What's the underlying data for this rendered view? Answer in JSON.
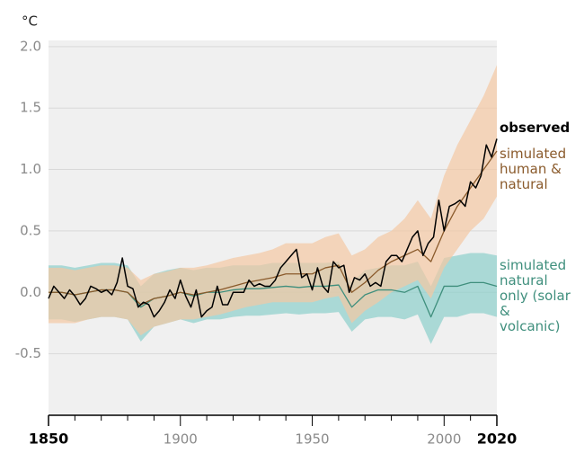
{
  "chart_data": {
    "type": "line",
    "y_label": "°C",
    "xlim": [
      1850,
      2020
    ],
    "xticks": [
      1850,
      1900,
      1950,
      2000,
      2020
    ],
    "xminorticks": [
      1860,
      1870,
      1880,
      1890,
      1910,
      1920,
      1930,
      1940,
      1960,
      1970,
      1980,
      1990,
      2010
    ],
    "ylim": [
      -1.0,
      2.05
    ],
    "yticks": [
      {
        "value": 2.0,
        "label": "2.0"
      },
      {
        "value": 1.5,
        "label": "1.5"
      },
      {
        "value": 1.0,
        "label": "1.0"
      },
      {
        "value": 0.5,
        "label": "0.5"
      },
      {
        "value": 0.0,
        "label": "0.0"
      },
      -0.5
    ],
    "grid": true,
    "series": [
      {
        "name": "simulated natural only (solar & volcanic)",
        "color": "#3f8f7d",
        "band_color": "#8ccfca",
        "x": [
          1850,
          1855,
          1860,
          1865,
          1870,
          1875,
          1880,
          1885,
          1890,
          1895,
          1900,
          1905,
          1910,
          1915,
          1920,
          1925,
          1930,
          1935,
          1940,
          1945,
          1950,
          1955,
          1960,
          1965,
          1970,
          1975,
          1980,
          1985,
          1990,
          1995,
          2000,
          2005,
          2010,
          2015,
          2020
        ],
        "values": [
          0.0,
          0.0,
          -0.02,
          0.0,
          0.02,
          0.02,
          0.0,
          -0.12,
          -0.05,
          -0.03,
          0.0,
          -0.03,
          0.0,
          0.0,
          0.02,
          0.03,
          0.03,
          0.04,
          0.05,
          0.04,
          0.05,
          0.05,
          0.06,
          -0.12,
          -0.02,
          0.02,
          0.02,
          0.0,
          0.05,
          -0.2,
          0.05,
          0.05,
          0.08,
          0.08,
          0.05
        ],
        "upper": [
          0.22,
          0.22,
          0.2,
          0.22,
          0.24,
          0.24,
          0.22,
          0.05,
          0.15,
          0.18,
          0.2,
          0.18,
          0.2,
          0.2,
          0.22,
          0.22,
          0.22,
          0.24,
          0.24,
          0.24,
          0.24,
          0.24,
          0.25,
          0.08,
          0.18,
          0.2,
          0.22,
          0.22,
          0.25,
          0.05,
          0.28,
          0.3,
          0.32,
          0.32,
          0.3
        ],
        "lower": [
          -0.22,
          -0.22,
          -0.24,
          -0.22,
          -0.2,
          -0.2,
          -0.22,
          -0.4,
          -0.28,
          -0.25,
          -0.22,
          -0.25,
          -0.22,
          -0.22,
          -0.2,
          -0.19,
          -0.19,
          -0.18,
          -0.17,
          -0.18,
          -0.17,
          -0.17,
          -0.16,
          -0.32,
          -0.22,
          -0.2,
          -0.2,
          -0.22,
          -0.18,
          -0.42,
          -0.2,
          -0.2,
          -0.17,
          -0.17,
          -0.2
        ]
      },
      {
        "name": "simulated human & natural",
        "color": "#8a5a2b",
        "band_color": "#f3c7a2",
        "x": [
          1850,
          1855,
          1860,
          1865,
          1870,
          1875,
          1880,
          1885,
          1890,
          1895,
          1900,
          1905,
          1910,
          1915,
          1920,
          1925,
          1930,
          1935,
          1940,
          1945,
          1950,
          1955,
          1960,
          1965,
          1970,
          1975,
          1980,
          1985,
          1990,
          1995,
          2000,
          2005,
          2010,
          2015,
          2020
        ],
        "values": [
          0.0,
          0.0,
          -0.02,
          0.0,
          0.02,
          0.02,
          0.0,
          -0.1,
          -0.05,
          -0.03,
          0.0,
          -0.02,
          0.0,
          0.02,
          0.05,
          0.08,
          0.1,
          0.12,
          0.15,
          0.15,
          0.15,
          0.2,
          0.22,
          0.0,
          0.08,
          0.18,
          0.25,
          0.3,
          0.35,
          0.25,
          0.5,
          0.7,
          0.85,
          1.0,
          1.15
        ],
        "upper": [
          0.2,
          0.2,
          0.18,
          0.2,
          0.22,
          0.22,
          0.2,
          0.1,
          0.15,
          0.17,
          0.2,
          0.2,
          0.22,
          0.25,
          0.28,
          0.3,
          0.32,
          0.35,
          0.4,
          0.4,
          0.4,
          0.45,
          0.48,
          0.3,
          0.35,
          0.45,
          0.5,
          0.6,
          0.75,
          0.6,
          0.95,
          1.2,
          1.4,
          1.6,
          1.85
        ],
        "lower": [
          -0.25,
          -0.25,
          -0.25,
          -0.22,
          -0.2,
          -0.2,
          -0.22,
          -0.35,
          -0.28,
          -0.25,
          -0.22,
          -0.22,
          -0.2,
          -0.18,
          -0.15,
          -0.12,
          -0.1,
          -0.08,
          -0.08,
          -0.08,
          -0.08,
          -0.05,
          -0.03,
          -0.25,
          -0.15,
          -0.08,
          0.0,
          0.05,
          0.1,
          -0.05,
          0.2,
          0.35,
          0.5,
          0.6,
          0.78
        ]
      },
      {
        "name": "observed",
        "color": "#000000",
        "x": [
          1850,
          1852,
          1854,
          1856,
          1858,
          1860,
          1862,
          1864,
          1866,
          1868,
          1870,
          1872,
          1874,
          1876,
          1878,
          1880,
          1882,
          1884,
          1886,
          1888,
          1890,
          1892,
          1894,
          1896,
          1898,
          1900,
          1902,
          1904,
          1906,
          1908,
          1910,
          1912,
          1914,
          1916,
          1918,
          1920,
          1922,
          1924,
          1926,
          1928,
          1930,
          1932,
          1934,
          1936,
          1938,
          1940,
          1942,
          1944,
          1946,
          1948,
          1950,
          1952,
          1954,
          1956,
          1958,
          1960,
          1962,
          1964,
          1966,
          1968,
          1970,
          1972,
          1974,
          1976,
          1978,
          1980,
          1982,
          1984,
          1986,
          1988,
          1990,
          1992,
          1994,
          1996,
          1998,
          2000,
          2002,
          2004,
          2006,
          2008,
          2010,
          2012,
          2014,
          2016,
          2018,
          2020
        ],
        "values": [
          -0.05,
          0.05,
          0.0,
          -0.05,
          0.02,
          -0.03,
          -0.1,
          -0.05,
          0.05,
          0.03,
          0.0,
          0.02,
          -0.02,
          0.08,
          0.28,
          0.05,
          0.03,
          -0.12,
          -0.08,
          -0.1,
          -0.2,
          -0.15,
          -0.08,
          0.02,
          -0.05,
          0.1,
          -0.03,
          -0.12,
          0.02,
          -0.2,
          -0.15,
          -0.12,
          0.05,
          -0.1,
          -0.1,
          0.0,
          0.0,
          0.0,
          0.1,
          0.05,
          0.07,
          0.05,
          0.05,
          0.1,
          0.2,
          0.25,
          0.3,
          0.35,
          0.12,
          0.15,
          0.02,
          0.2,
          0.05,
          0.0,
          0.25,
          0.2,
          0.22,
          0.0,
          0.12,
          0.1,
          0.15,
          0.05,
          0.08,
          0.05,
          0.25,
          0.3,
          0.3,
          0.25,
          0.35,
          0.45,
          0.5,
          0.3,
          0.4,
          0.45,
          0.75,
          0.5,
          0.7,
          0.72,
          0.75,
          0.7,
          0.9,
          0.85,
          0.95,
          1.2,
          1.1,
          1.25
        ]
      }
    ]
  }
}
